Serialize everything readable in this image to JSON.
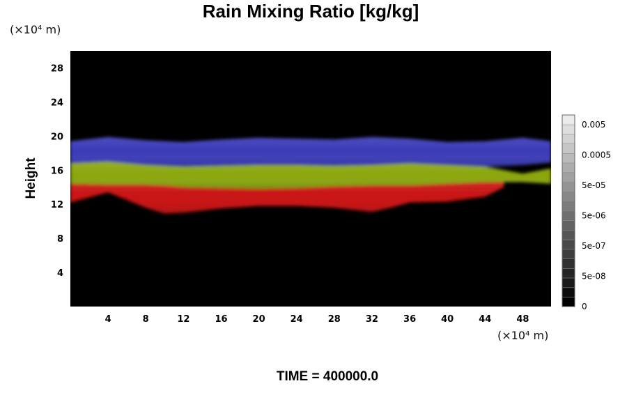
{
  "chart_data": {
    "type": "heatmap",
    "title": "Rain Mixing Ratio [kg/kg]",
    "xlabel": "",
    "ylabel": "Height",
    "x_unit_label": "(×10⁴ m)",
    "y_unit_label": "(×10⁴ m)",
    "footer": "TIME = 400000.0",
    "xlim": [
      0,
      51
    ],
    "ylim": [
      0,
      30
    ],
    "x_ticks": [
      4,
      8,
      12,
      16,
      20,
      24,
      28,
      32,
      36,
      40,
      44,
      48
    ],
    "y_ticks": [
      4,
      8,
      12,
      16,
      20,
      24,
      28
    ],
    "colorbar": {
      "labels": [
        "0.005",
        "0.0005",
        "5e-05",
        "5e-06",
        "5e-07",
        "5e-08",
        "0"
      ],
      "levels": 20,
      "colors": [
        "#000000",
        "#ffffff"
      ]
    },
    "bands": [
      {
        "name": "upper",
        "color": "#3a3ab8",
        "x": [
          0,
          4,
          8,
          12,
          16,
          20,
          24,
          28,
          32,
          36,
          40,
          44,
          48,
          51
        ],
        "top": [
          19.4,
          19.9,
          19.5,
          19.3,
          19.6,
          19.8,
          19.7,
          19.6,
          19.9,
          19.7,
          19.3,
          19.4,
          19.8,
          19.4
        ],
        "bottom": [
          16.8,
          17.0,
          16.6,
          16.4,
          16.5,
          16.6,
          16.6,
          16.5,
          16.6,
          16.8,
          16.6,
          16.4,
          16.6,
          16.9
        ]
      },
      {
        "name": "middle",
        "color": "#8aa60c",
        "x": [
          0,
          4,
          8,
          12,
          16,
          20,
          24,
          28,
          32,
          36,
          40,
          44,
          48,
          51
        ],
        "top": [
          16.8,
          17.0,
          16.6,
          16.4,
          16.5,
          16.6,
          16.6,
          16.5,
          16.6,
          16.8,
          16.6,
          16.4,
          15.6,
          16.2
        ],
        "bottom": [
          14.4,
          14.3,
          14.3,
          14.0,
          13.9,
          13.8,
          13.9,
          14.1,
          14.2,
          14.2,
          14.4,
          14.6,
          14.6,
          14.4
        ]
      },
      {
        "name": "lower",
        "color": "#c81010",
        "x": [
          0,
          4,
          8,
          10,
          12,
          16,
          20,
          24,
          28,
          32,
          34,
          36,
          40,
          44,
          46
        ],
        "top": [
          14.4,
          14.3,
          14.3,
          14.2,
          14.0,
          13.9,
          13.8,
          13.9,
          14.1,
          14.2,
          14.2,
          14.2,
          14.4,
          14.6,
          14.6
        ],
        "bottom": [
          12.2,
          13.4,
          11.6,
          10.9,
          11.0,
          11.5,
          11.8,
          11.8,
          11.6,
          11.1,
          11.6,
          12.2,
          12.3,
          12.9,
          14.0
        ]
      }
    ]
  }
}
